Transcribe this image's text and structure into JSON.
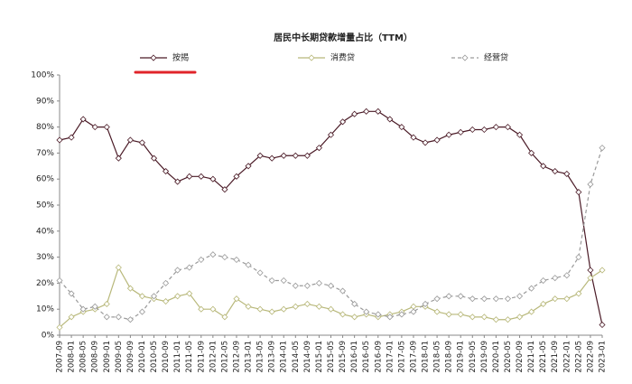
{
  "chart_data": {
    "type": "line",
    "title": "居民中长期贷款增量占比（TTM）",
    "categories": [
      "2007-09",
      "2008-01",
      "2008-05",
      "2008-09",
      "2009-01",
      "2009-05",
      "2009-09",
      "2010-01",
      "2010-05",
      "2010-09",
      "2011-01",
      "2011-05",
      "2011-09",
      "2012-01",
      "2012-05",
      "2012-09",
      "2013-01",
      "2013-05",
      "2013-09",
      "2014-01",
      "2014-05",
      "2014-09",
      "2015-01",
      "2015-05",
      "2015-09",
      "2016-01",
      "2016-05",
      "2016-09",
      "2017-01",
      "2017-05",
      "2017-09",
      "2018-01",
      "2018-05",
      "2018-09",
      "2019-01",
      "2019-05",
      "2019-09",
      "2020-01",
      "2020-05",
      "2020-09",
      "2021-01",
      "2021-05",
      "2021-09",
      "2022-01",
      "2022-05",
      "2022-09",
      "2023-01"
    ],
    "series": [
      {
        "name": "按揭",
        "color": "#4a1a26",
        "line_style": "solid",
        "values": [
          75,
          76,
          83,
          80,
          80,
          68,
          75,
          74,
          68,
          63,
          59,
          61,
          61,
          60,
          56,
          61,
          65,
          69,
          68,
          69,
          69,
          69,
          72,
          77,
          82,
          85,
          86,
          86,
          83,
          80,
          76,
          74,
          75,
          77,
          78,
          79,
          79,
          80,
          80,
          77,
          70,
          65,
          63,
          62,
          55,
          25,
          4
        ]
      },
      {
        "name": "消费贷",
        "color": "#b8b87a",
        "line_style": "solid",
        "values": [
          3,
          7,
          9,
          10,
          12,
          26,
          18,
          15,
          14,
          13,
          15,
          16,
          10,
          10,
          7,
          14,
          11,
          10,
          9,
          10,
          11,
          12,
          11,
          10,
          8,
          7,
          8,
          7,
          8,
          9,
          11,
          11,
          9,
          8,
          8,
          7,
          7,
          6,
          6,
          7,
          9,
          12,
          14,
          14,
          16,
          22,
          25
        ]
      },
      {
        "name": "经营贷",
        "color": "#9a9a9a",
        "line_style": "dashed",
        "values": [
          21,
          16,
          10,
          11,
          7,
          7,
          6,
          9,
          15,
          20,
          25,
          26,
          29,
          31,
          30,
          29,
          27,
          24,
          21,
          21,
          19,
          19,
          20,
          19,
          17,
          12,
          9,
          8,
          7,
          8,
          9,
          12,
          14,
          15,
          15,
          14,
          14,
          14,
          14,
          15,
          18,
          21,
          22,
          23,
          30,
          58,
          72
        ]
      }
    ],
    "ylim": [
      0,
      100
    ],
    "yticks": [
      {
        "value": 0,
        "label": "0%"
      },
      {
        "value": 10,
        "label": "10%"
      },
      {
        "value": 20,
        "label": "20%"
      },
      {
        "value": 30,
        "label": "30%"
      },
      {
        "value": 40,
        "label": "40%"
      },
      {
        "value": 50,
        "label": "50%"
      },
      {
        "value": 60,
        "label": "60%"
      },
      {
        "value": 70,
        "label": "70%"
      },
      {
        "value": 80,
        "label": "80%"
      },
      {
        "value": 90,
        "label": "90%"
      },
      {
        "value": 100,
        "label": "100%"
      }
    ],
    "grid": false,
    "legend": "top",
    "marker": "diamond"
  }
}
